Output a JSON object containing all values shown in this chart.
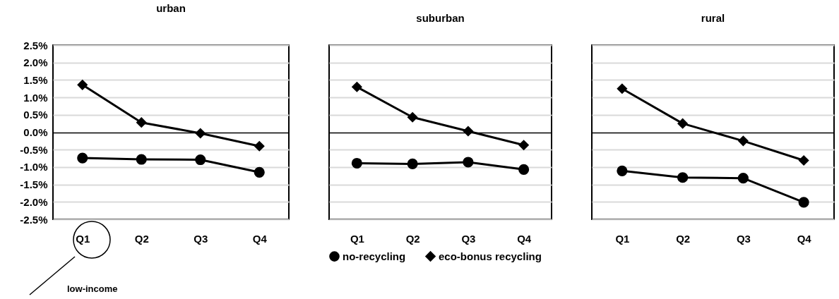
{
  "chart_data": [
    {
      "type": "line",
      "title": "urban",
      "categories": [
        "Q1",
        "Q2",
        "Q3",
        "Q4"
      ],
      "ylim": [
        -2.5,
        2.5
      ],
      "yticks": [
        {
          "value": 2.5,
          "label": "2.5%"
        },
        {
          "value": 2,
          "label": "2.0%"
        },
        {
          "value": 1.5,
          "label": "1.5%"
        },
        {
          "value": 1,
          "label": "1.0%"
        },
        {
          "value": 0.5,
          "label": "0.5%"
        },
        {
          "value": 0,
          "label": "0.0%"
        },
        {
          "value": -0.5,
          "label": "-0.5%"
        },
        {
          "value": -1,
          "label": "-1.0%"
        },
        {
          "value": -1.5,
          "label": "-1.5%"
        },
        {
          "value": -2,
          "label": "-2.0%"
        },
        {
          "value": -2.5,
          "label": "-2.5%"
        }
      ],
      "grid": "y",
      "series": [
        {
          "color": "#000000",
          "marker": "circle",
          "values": [
            -0.74,
            -0.78,
            -0.79,
            -1.15
          ]
        },
        {
          "color": "#000000",
          "marker": "diamond",
          "values": [
            1.36,
            0.28,
            -0.03,
            -0.4
          ]
        }
      ],
      "annotations": [
        "low-income"
      ]
    },
    {
      "type": "line",
      "title": "suburban",
      "categories": [
        "Q1",
        "Q2",
        "Q3",
        "Q4"
      ],
      "ylim": [
        -2.5,
        2.5
      ],
      "yticks": [
        2.5,
        2,
        1.5,
        1,
        0.5,
        0,
        -0.5,
        -1,
        -1.5,
        -2,
        -2.5
      ],
      "grid": "y",
      "tick_labels": "x",
      "legend": "bottom",
      "series": [
        {
          "name": "no-recycling",
          "color": "#000000",
          "marker": "circle",
          "values": [
            -0.89,
            -0.91,
            -0.86,
            -1.07
          ]
        },
        {
          "name": "eco-bonus recycling",
          "color": "#000000",
          "marker": "diamond",
          "values": [
            1.3,
            0.43,
            0.03,
            -0.37
          ]
        }
      ]
    },
    {
      "type": "line",
      "title": "rural",
      "categories": [
        "Q1",
        "Q2",
        "Q3",
        "Q4"
      ],
      "ylim": [
        -2.5,
        2.5
      ],
      "yticks": [
        2.5,
        2,
        1.5,
        1,
        0.5,
        0,
        -0.5,
        -1,
        -1.5,
        -2,
        -2.5
      ],
      "grid": "y",
      "tick_labels": "x",
      "series": [
        {
          "color": "#000000",
          "marker": "circle",
          "values": [
            -1.11,
            -1.3,
            -1.32,
            -2.01
          ]
        },
        {
          "color": "#000000",
          "marker": "diamond",
          "values": [
            1.25,
            0.25,
            -0.25,
            -0.81
          ]
        }
      ]
    }
  ]
}
